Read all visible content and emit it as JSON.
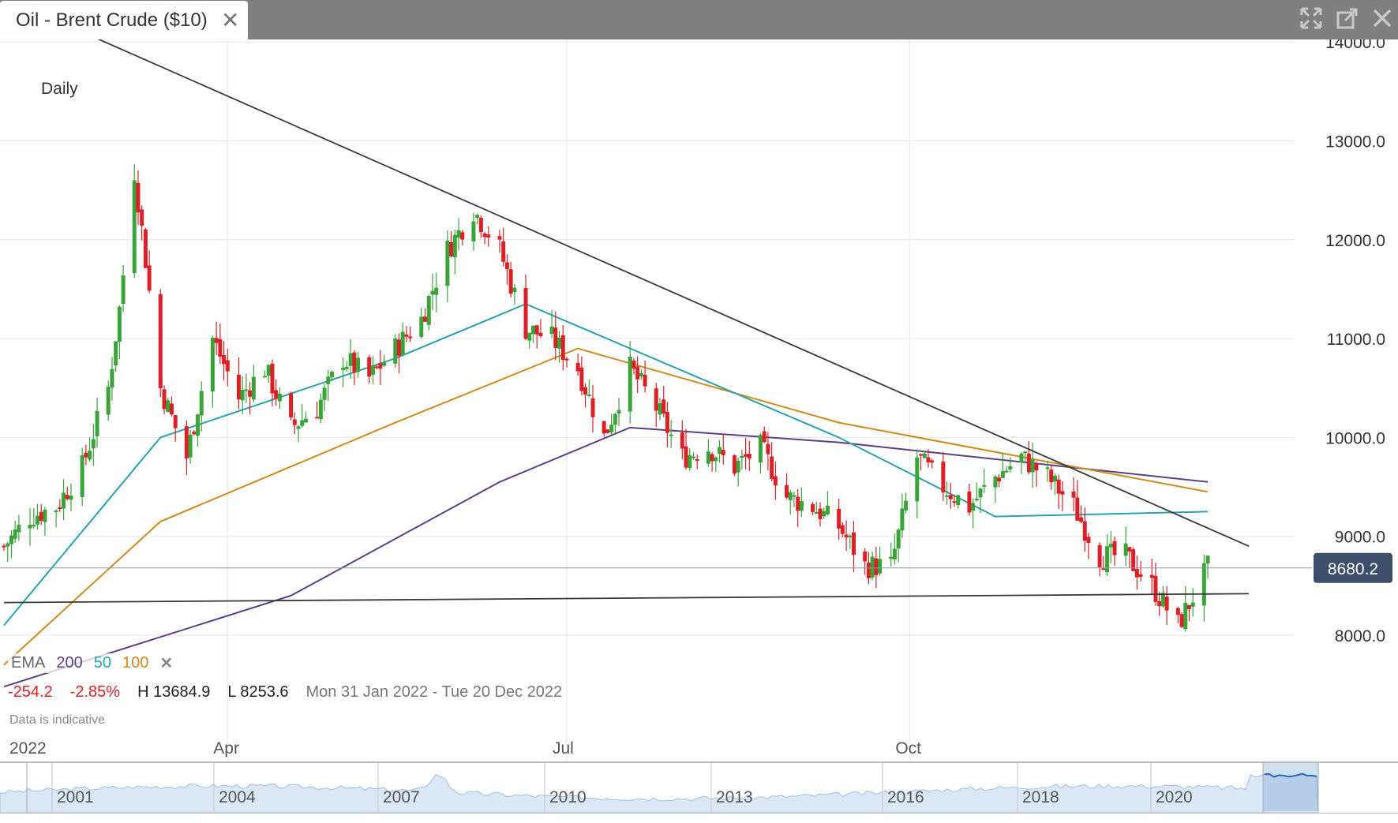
{
  "window": {
    "tab_title": "Oil - Brent Crude ($10)",
    "tab_close": "✕",
    "icons": [
      "expand-icon",
      "popout-icon",
      "close-icon"
    ]
  },
  "chart": {
    "period": "Daily",
    "current_price_label": "8680.2",
    "ema": {
      "label": "EMA",
      "p200": "200",
      "p50": "50",
      "p100": "100",
      "remove": "✕"
    },
    "stats": {
      "change": "-254.2",
      "change_pct": "-2.85%",
      "high": "H 13684.9",
      "low": "L 8253.6",
      "range": "Mon 31 Jan 2022 - Tue 20 Dec 2022"
    },
    "disclaimer": "Data is indicative",
    "year_label": "2022",
    "navigator_years": [
      "2001",
      "2004",
      "2007",
      "2010",
      "2013",
      "2016",
      "2018",
      "2020"
    ]
  },
  "colors": {
    "up": "#3aa33a",
    "down": "#dd1f26",
    "ema200": "#5a3e87",
    "ema50": "#2aa2b0",
    "ema100": "#d08a1c",
    "trendline": "#3a3a3a",
    "price_box": "#3d4e6a"
  },
  "chart_data": {
    "type": "candlestick",
    "y_axis": {
      "ticks": [
        8000,
        9000,
        10000,
        11000,
        12000,
        13000,
        14000
      ],
      "tick_labels": [
        "8000.0",
        "9000.0",
        "10000.0",
        "11000.0",
        "12000.0",
        "13000.0",
        "14000.0"
      ],
      "ylim": [
        7400,
        14500
      ]
    },
    "x_axis": {
      "labels": [
        "2022",
        "Apr",
        "Jul",
        "Oct"
      ],
      "range": [
        "2022-01-31",
        "2022-12-20"
      ]
    },
    "close_path": [
      [
        "2022-01-31",
        8900
      ],
      [
        "2022-02-07",
        9200
      ],
      [
        "2022-02-14",
        9300
      ],
      [
        "2022-02-21",
        9700
      ],
      [
        "2022-02-28",
        10500
      ],
      [
        "2022-03-03",
        11300
      ],
      [
        "2022-03-07",
        12700
      ],
      [
        "2022-03-10",
        11800
      ],
      [
        "2022-03-14",
        10500
      ],
      [
        "2022-03-21",
        9800
      ],
      [
        "2022-03-28",
        11000
      ],
      [
        "2022-04-04",
        10400
      ],
      [
        "2022-04-11",
        10700
      ],
      [
        "2022-04-18",
        10100
      ],
      [
        "2022-04-25",
        10300
      ],
      [
        "2022-05-02",
        10800
      ],
      [
        "2022-05-09",
        10600
      ],
      [
        "2022-05-16",
        10900
      ],
      [
        "2022-05-23",
        11200
      ],
      [
        "2022-05-30",
        11900
      ],
      [
        "2022-06-06",
        12300
      ],
      [
        "2022-06-13",
        11900
      ],
      [
        "2022-06-20",
        11100
      ],
      [
        "2022-06-27",
        11000
      ],
      [
        "2022-07-04",
        10700
      ],
      [
        "2022-07-11",
        10000
      ],
      [
        "2022-07-18",
        10700
      ],
      [
        "2022-07-25",
        10300
      ],
      [
        "2022-08-01",
        9800
      ],
      [
        "2022-08-08",
        9900
      ],
      [
        "2022-08-15",
        9700
      ],
      [
        "2022-08-22",
        9900
      ],
      [
        "2022-08-29",
        9400
      ],
      [
        "2022-09-05",
        9300
      ],
      [
        "2022-09-12",
        9100
      ],
      [
        "2022-09-19",
        8700
      ],
      [
        "2022-09-26",
        8700
      ],
      [
        "2022-10-03",
        9800
      ],
      [
        "2022-10-10",
        9500
      ],
      [
        "2022-10-17",
        9300
      ],
      [
        "2022-10-24",
        9600
      ],
      [
        "2022-10-31",
        9800
      ],
      [
        "2022-11-07",
        9600
      ],
      [
        "2022-11-14",
        9300
      ],
      [
        "2022-11-21",
        8800
      ],
      [
        "2022-11-28",
        8800
      ],
      [
        "2022-12-05",
        8500
      ],
      [
        "2022-12-12",
        8100
      ],
      [
        "2022-12-20",
        8680
      ]
    ],
    "ema": {
      "ema200": [
        [
          "2022-01-31",
          7480
        ],
        [
          "2022-04-18",
          8400
        ],
        [
          "2022-06-13",
          9550
        ],
        [
          "2022-07-18",
          10100
        ],
        [
          "2022-09-12",
          9950
        ],
        [
          "2022-12-20",
          9550
        ]
      ],
      "ema100": [
        [
          "2022-01-31",
          7700
        ],
        [
          "2022-03-14",
          9150
        ],
        [
          "2022-05-16",
          10150
        ],
        [
          "2022-07-04",
          10900
        ],
        [
          "2022-09-12",
          10150
        ],
        [
          "2022-12-20",
          9450
        ]
      ],
      "ema50": [
        [
          "2022-01-31",
          8100
        ],
        [
          "2022-03-14",
          10000
        ],
        [
          "2022-05-16",
          10800
        ],
        [
          "2022-06-20",
          11350
        ],
        [
          "2022-09-12",
          10000
        ],
        [
          "2022-10-24",
          9200
        ],
        [
          "2022-12-20",
          9250
        ]
      ]
    },
    "trendlines": [
      {
        "from": [
          "2022-01-31",
          14450
        ],
        "to": [
          "2022-12-31",
          8900
        ]
      },
      {
        "from": [
          "2022-01-31",
          8330
        ],
        "to": [
          "2022-12-31",
          8420
        ]
      }
    ],
    "last_price": 8680.2
  }
}
